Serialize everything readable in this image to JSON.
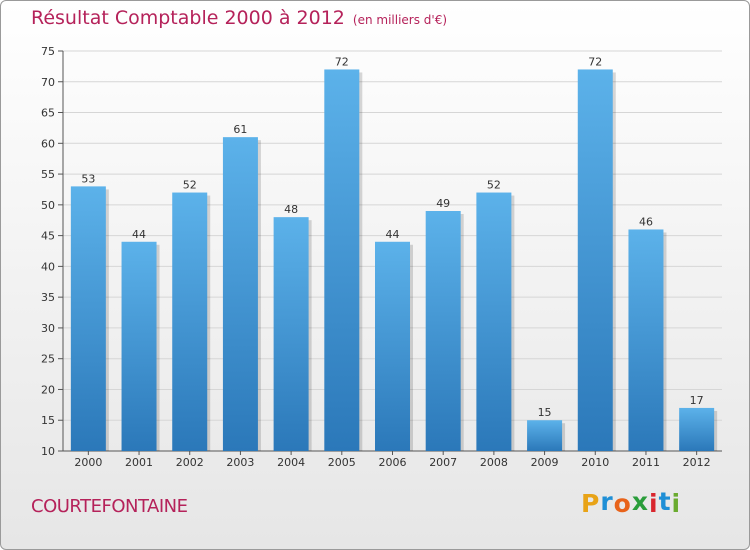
{
  "title": "Résultat Comptable 2000 à 2012",
  "subtitle": "(en milliers d'€)",
  "commune": "COURTEFONTAINE",
  "logo": {
    "letters": [
      "P",
      "r",
      "o",
      "x",
      "i",
      "t",
      "i"
    ],
    "colors": [
      "#e8a317",
      "#1f8fd6",
      "#e8631a",
      "#2a9d3a",
      "#d9262e",
      "#1f8fd6",
      "#6aab2f"
    ]
  },
  "colors": {
    "bar_top": "#5cb2ea",
    "bar_bottom": "#2b78b9",
    "accent": "#b5225a"
  },
  "chart_data": {
    "type": "bar",
    "title": "Résultat Comptable 2000 à 2012",
    "xlabel": "",
    "ylabel": "",
    "categories": [
      "2000",
      "2001",
      "2002",
      "2003",
      "2004",
      "2005",
      "2006",
      "2007",
      "2008",
      "2009",
      "2010",
      "2011",
      "2012"
    ],
    "values": [
      53,
      44,
      52,
      61,
      48,
      72,
      44,
      49,
      52,
      15,
      72,
      46,
      17
    ],
    "ylim": [
      10,
      75
    ],
    "yticks": [
      10,
      15,
      20,
      25,
      30,
      35,
      40,
      45,
      50,
      55,
      60,
      65,
      70,
      75
    ],
    "grid": true
  }
}
